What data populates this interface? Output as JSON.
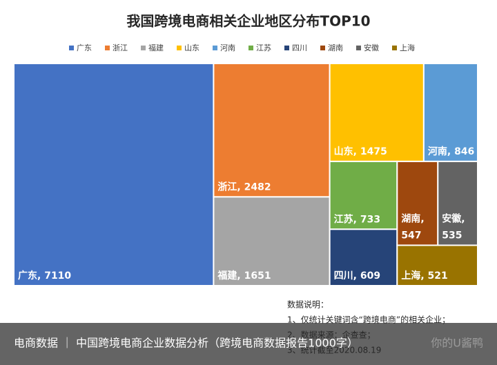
{
  "chart_data": {
    "type": "treemap",
    "title": "我国跨境电商相关企业地区分布TOP10",
    "categories": [
      "广东",
      "浙江",
      "福建",
      "山东",
      "河南",
      "江苏",
      "四川",
      "湖南",
      "安徽",
      "上海"
    ],
    "values": [
      7110,
      2482,
      1651,
      1475,
      846,
      733,
      609,
      547,
      535,
      521
    ],
    "colors": [
      "#4472c4",
      "#ed7d31",
      "#a5a5a5",
      "#ffc000",
      "#5b9bd5",
      "#70ad47",
      "#264478",
      "#9e480e",
      "#636363",
      "#997300"
    ],
    "legend": "top"
  },
  "notes": [
    "数据说明：",
    "1、仅统计关键词含“跨境电商”的相关企业；",
    "2、数据来源：企查查；",
    "3、统计截至2020.08.19"
  ],
  "caption": "电商数据 ｜ 中国跨境电商企业数据分析（跨境电商数据报告1000字）",
  "watermark": "你的U酱鸭"
}
